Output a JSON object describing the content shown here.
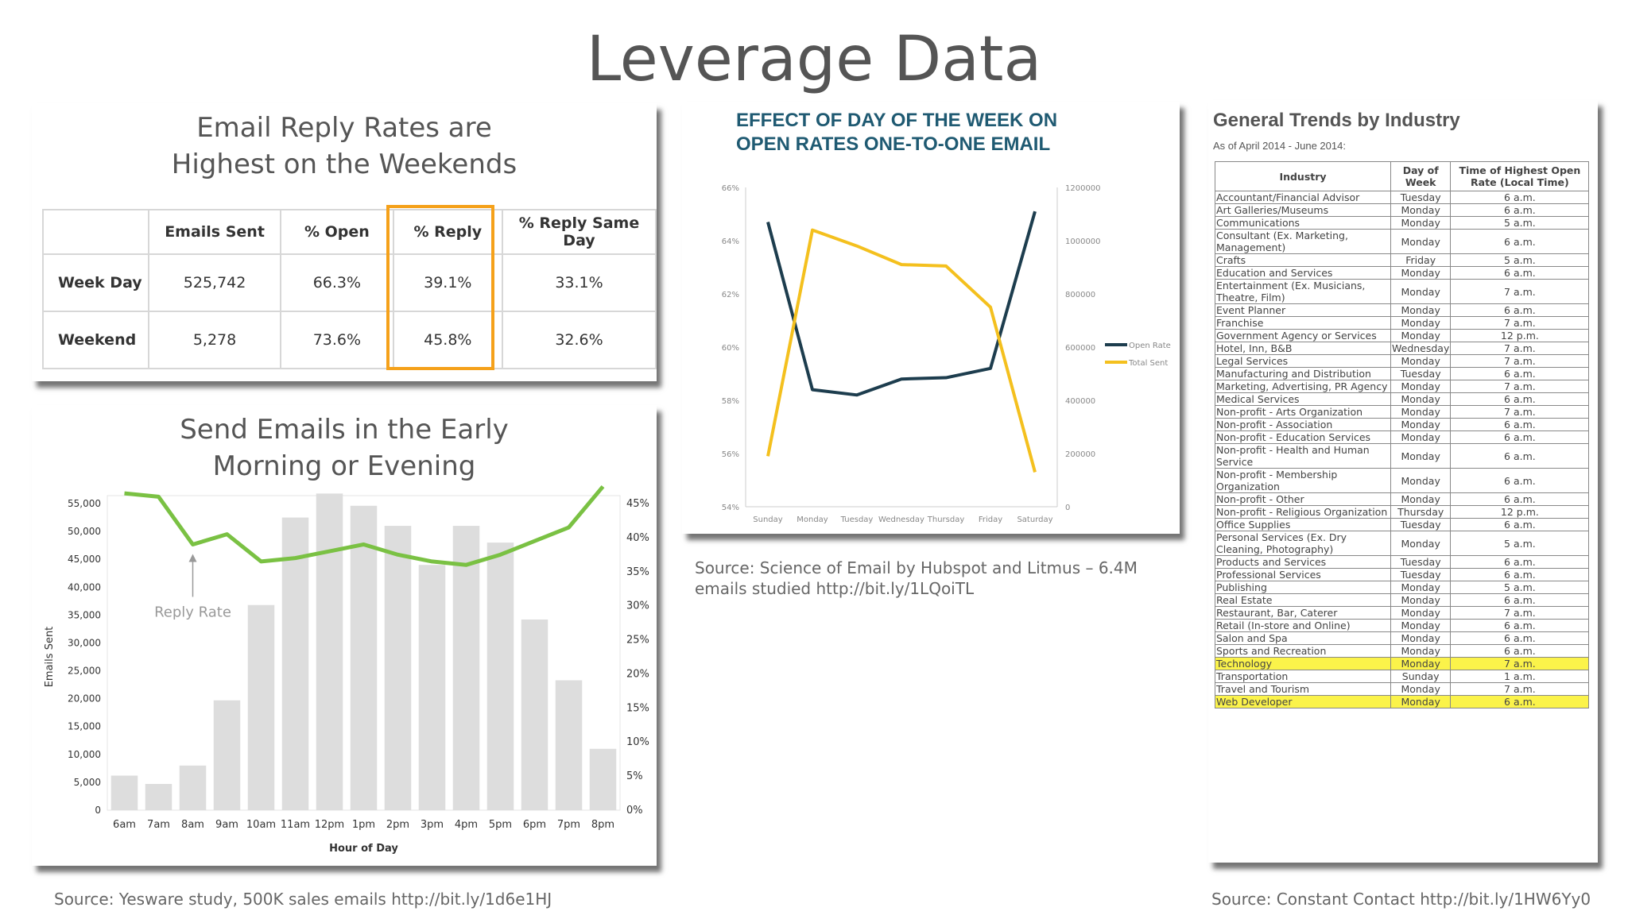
{
  "page": {
    "title": "Leverage Data"
  },
  "reply_panel": {
    "title": "Email Reply Rates are Highest on the Weekends",
    "columns": [
      "",
      "Emails Sent",
      "% Open",
      "% Reply",
      "% Reply Same Day"
    ],
    "rows": [
      [
        "Week Day",
        "525,742",
        "66.3%",
        "39.1%",
        "33.1%"
      ],
      [
        "Weekend",
        "5,278",
        "73.6%",
        "45.8%",
        "32.6%"
      ]
    ],
    "highlight_color": "#f5a11a"
  },
  "hour_panel": {
    "title": "Send Emails in the Early Morning or Evening",
    "annotation": "Reply Rate"
  },
  "day_panel": {
    "title_line1": "EFFECT OF DAY OF THE WEEK ON",
    "title_line2": "OPEN RATES ONE-TO-ONE EMAIL"
  },
  "industry_panel": {
    "title": "General Trends by Industry",
    "subtitle": "As of April 2014 - June 2014:",
    "columns": [
      "Industry",
      "Day of Week",
      "Time of Highest Open Rate (Local Time)"
    ],
    "rows": [
      [
        "Accountant/Financial Advisor",
        "Tuesday",
        "6 a.m."
      ],
      [
        "Art Galleries/Museums",
        "Monday",
        "6 a.m."
      ],
      [
        "Communications",
        "Monday",
        "5 a.m."
      ],
      [
        "Consultant (Ex. Marketing, Management)",
        "Monday",
        "6 a.m."
      ],
      [
        "Crafts",
        "Friday",
        "5 a.m."
      ],
      [
        "Education and Services",
        "Monday",
        "6 a.m."
      ],
      [
        "Entertainment (Ex. Musicians, Theatre, Film)",
        "Monday",
        "7 a.m."
      ],
      [
        "Event Planner",
        "Monday",
        "6 a.m."
      ],
      [
        "Franchise",
        "Monday",
        "7 a.m."
      ],
      [
        "Government Agency or Services",
        "Monday",
        "12 p.m."
      ],
      [
        "Hotel, Inn, B&B",
        "Wednesday",
        "7 a.m."
      ],
      [
        "Legal Services",
        "Monday",
        "7 a.m."
      ],
      [
        "Manufacturing and Distribution",
        "Tuesday",
        "6 a.m."
      ],
      [
        "Marketing, Advertising, PR Agency",
        "Monday",
        "7 a.m."
      ],
      [
        "Medical Services",
        "Monday",
        "6 a.m."
      ],
      [
        "Non-profit - Arts Organization",
        "Monday",
        "7 a.m."
      ],
      [
        "Non-profit - Association",
        "Monday",
        "6 a.m."
      ],
      [
        "Non-profit - Education Services",
        "Monday",
        "6 a.m."
      ],
      [
        "Non-profit - Health and Human Service",
        "Monday",
        "6 a.m."
      ],
      [
        "Non-profit - Membership Organization",
        "Monday",
        "6 a.m."
      ],
      [
        "Non-profit - Other",
        "Monday",
        "6 a.m."
      ],
      [
        "Non-profit - Religious Organization",
        "Thursday",
        "12 p.m."
      ],
      [
        "Office Supplies",
        "Tuesday",
        "6 a.m."
      ],
      [
        "Personal Services (Ex. Dry Cleaning, Photography)",
        "Monday",
        "5 a.m."
      ],
      [
        "Products and Services",
        "Tuesday",
        "6 a.m."
      ],
      [
        "Professional Services",
        "Tuesday",
        "6 a.m."
      ],
      [
        "Publishing",
        "Monday",
        "5 a.m."
      ],
      [
        "Real Estate",
        "Monday",
        "6 a.m."
      ],
      [
        "Restaurant, Bar, Caterer",
        "Monday",
        "7 a.m."
      ],
      [
        "Retail (In-store and Online)",
        "Monday",
        "6 a.m."
      ],
      [
        "Salon and Spa",
        "Monday",
        "6 a.m."
      ],
      [
        "Sports and Recreation",
        "Monday",
        "6 a.m."
      ],
      [
        "Technology",
        "Monday",
        "7 a.m."
      ],
      [
        "Transportation",
        "Sunday",
        "1 a.m."
      ],
      [
        "Travel and Tourism",
        "Monday",
        "7 a.m."
      ],
      [
        "Web Developer",
        "Monday",
        "6 a.m."
      ]
    ],
    "highlighted_rows": [
      "Technology",
      "Web Developer"
    ],
    "highlight_color": "#fbf34a"
  },
  "sources": {
    "yesware": "Source: Yesware study, 500K sales emails http://bit.ly/1d6e1HJ",
    "hubspot": "Source: Science of Email by Hubspot and Litmus – 6.4M emails studied http://bit.ly/1LQoiTL",
    "constant_contact": "Source: Constant Contact http://bit.ly/1HW6Yy0"
  },
  "chart_data": [
    {
      "type": "bar",
      "categories": [
        "6am",
        "7am",
        "8am",
        "9am",
        "10am",
        "11am",
        "12pm",
        "1pm",
        "2pm",
        "3pm",
        "4pm",
        "5pm",
        "6pm",
        "7pm",
        "8pm"
      ],
      "series": [
        {
          "values": [
            6200,
            4700,
            8000,
            19700,
            36800,
            52500,
            56800,
            54600,
            51000,
            44000,
            51000,
            48000,
            34200,
            23300,
            11000
          ]
        },
        {
          "name": "Reply Rate",
          "type": "line",
          "axis": "right",
          "values": [
            46.5,
            46.0,
            39.0,
            40.5,
            36.5,
            37.0,
            38.0,
            39.0,
            37.5,
            36.5,
            36.0,
            37.5,
            39.5,
            41.5,
            47.5
          ]
        }
      ],
      "xlabel": "Hour of Day",
      "ylabel": "Emails Sent",
      "ylim": [
        0,
        55000
      ],
      "yticks": [
        "0",
        "5,000",
        "10,000",
        "15,000",
        "20,000",
        "25,000",
        "30,000",
        "35,000",
        "40,000",
        "45,000",
        "50,000",
        "55,000"
      ],
      "y2lim": [
        0,
        45
      ],
      "y2ticks": [
        "0%",
        "5%",
        "10%",
        "15%",
        "20%",
        "25%",
        "30%",
        "35%",
        "40%",
        "45%"
      ],
      "colors": {
        "bars": "#dddddd",
        "line": "#7ac143"
      }
    },
    {
      "type": "line",
      "categories": [
        "Sunday",
        "Monday",
        "Tuesday",
        "Wednesday",
        "Thursday",
        "Friday",
        "Saturday"
      ],
      "series": [
        {
          "name": "Open Rate",
          "axis": "left",
          "values": [
            64.7,
            58.4,
            58.2,
            58.8,
            58.85,
            59.2,
            65.1
          ],
          "color": "#1d3d4e"
        },
        {
          "name": "Total Sent",
          "axis": "right",
          "values": [
            190000,
            1040000,
            980000,
            910000,
            905000,
            750000,
            130000
          ],
          "color": "#f4c01e"
        }
      ],
      "ylim": [
        54,
        66
      ],
      "yticks": [
        "54%",
        "56%",
        "58%",
        "60%",
        "62%",
        "64%",
        "66%"
      ],
      "y2lim": [
        0,
        1200000
      ],
      "y2ticks": [
        "0",
        "200000",
        "400000",
        "600000",
        "800000",
        "1000000",
        "1200000"
      ],
      "legend": "right"
    }
  ]
}
